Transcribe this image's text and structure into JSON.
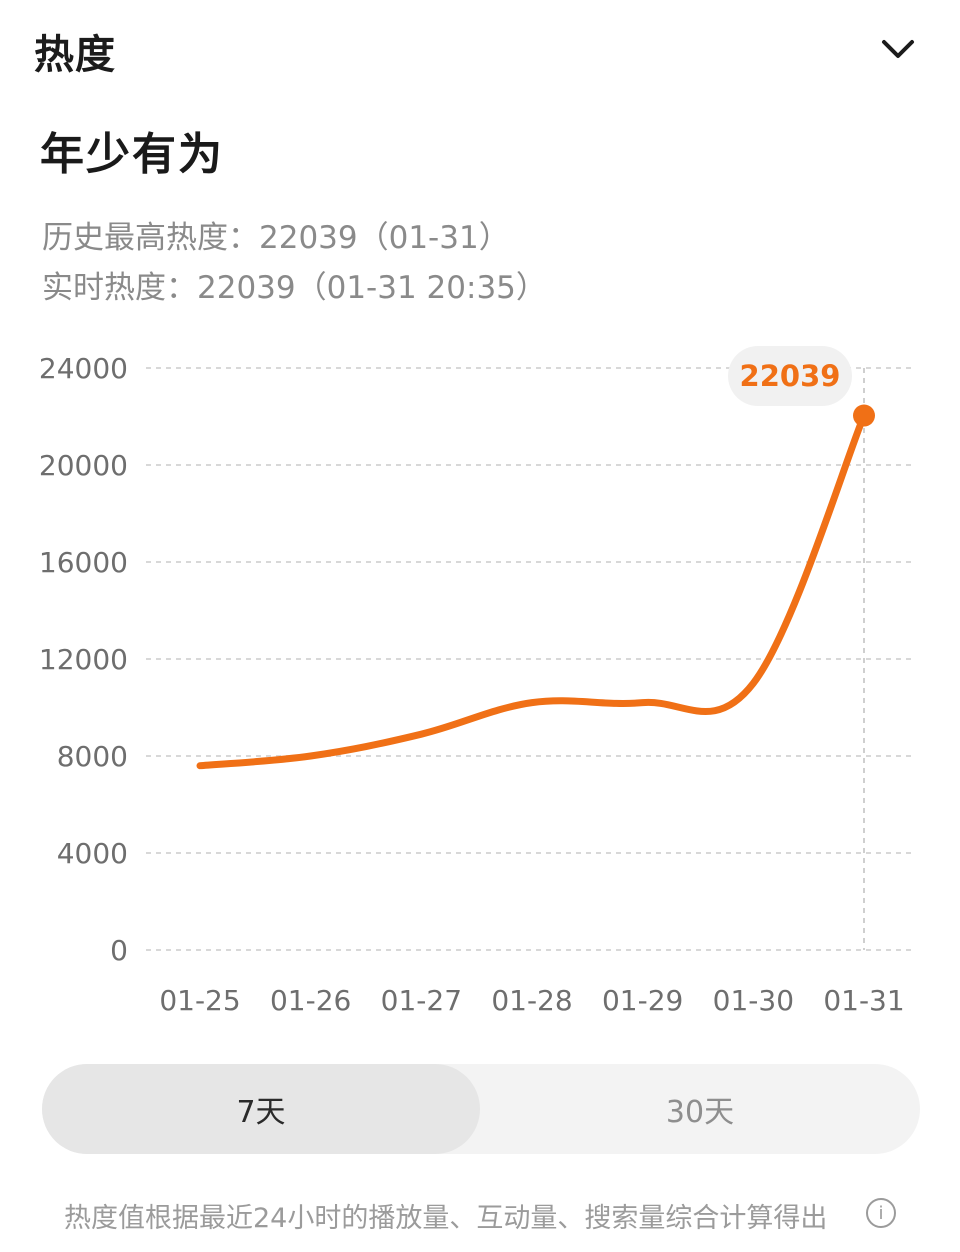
{
  "header": {
    "title": "热度",
    "collapse_icon": "chevron-down-icon"
  },
  "topic": {
    "title": "年少有为"
  },
  "stats": {
    "peak": "历史最高热度：22039（01-31）",
    "live": "实时热度：22039（01-31 20:35）"
  },
  "colors": {
    "accent": "#f07016",
    "grid": "#d8d8d8",
    "bubble_bg": "#f1f1f1"
  },
  "chart_data": {
    "type": "line",
    "x": [
      "01-25",
      "01-26",
      "01-27",
      "01-28",
      "01-29",
      "01-30",
      "01-31"
    ],
    "series": [
      {
        "values": [
          7600,
          8000,
          8900,
          10200,
          10200,
          11000,
          22039
        ]
      }
    ],
    "yticks": [
      "24000",
      "20000",
      "16000",
      "12000",
      "8000",
      "4000",
      "0"
    ],
    "ylim": [
      0,
      24000
    ],
    "grid": true,
    "highlight": {
      "label": "22039",
      "index": 6
    }
  },
  "range_tabs": [
    {
      "label": "7天",
      "selected": true
    },
    {
      "label": "30天",
      "selected": false
    }
  ],
  "footnote": "热度值根据最近24小时的播放量、互动量、搜索量综合计算得出",
  "info_icon": "info-icon"
}
